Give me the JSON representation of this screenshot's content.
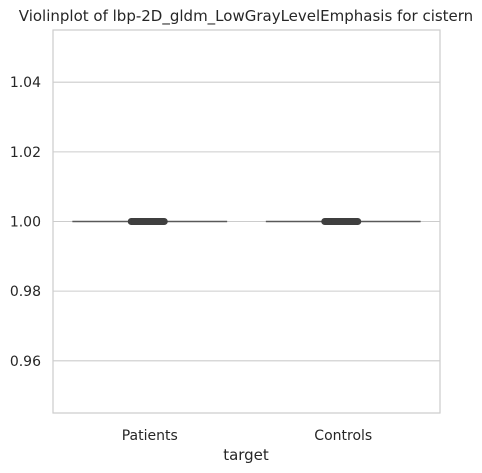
{
  "chart_data": {
    "type": "violin",
    "title": "Violinplot of lbp-2D_gldm_LowGrayLevelEmphasis for cistern",
    "xlabel": "target",
    "ylabel": "",
    "categories": [
      "Patients",
      "Controls"
    ],
    "ylim": [
      0.945,
      1.055
    ],
    "yticks": [
      0.96,
      0.98,
      1.0,
      1.02,
      1.04
    ],
    "ytick_labels": [
      "0.96",
      "0.98",
      "1.00",
      "1.02",
      "1.04"
    ],
    "series": [
      {
        "category": "Patients",
        "median": 1.0,
        "q1": 1.0,
        "q3": 1.0,
        "min": 1.0,
        "max": 1.0
      },
      {
        "category": "Controls",
        "median": 1.0,
        "q1": 1.0,
        "q3": 1.0,
        "min": 1.0,
        "max": 1.0
      }
    ],
    "grid": "y",
    "colors": {
      "grid": "#cccccc",
      "frame": "#cccccc",
      "mark": "#3f3f3f",
      "line": "#595959"
    }
  }
}
